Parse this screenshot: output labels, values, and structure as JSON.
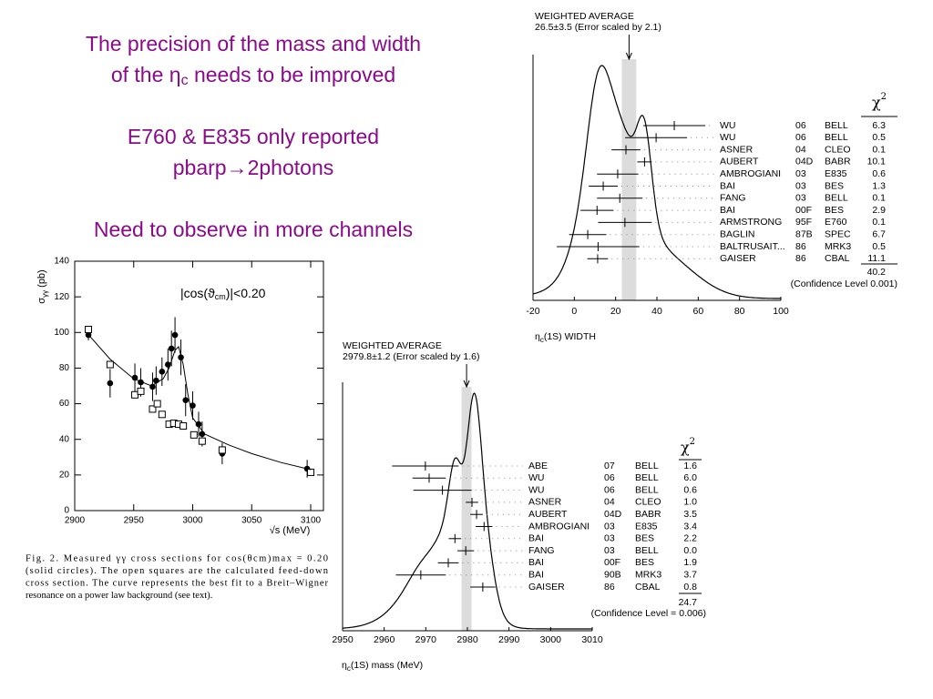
{
  "slide": {
    "line1": "The precision of the mass and width",
    "line2": [
      "of the η",
      "c",
      " needs to be improved"
    ],
    "line3": "E760 & E835 only reported",
    "line4": "pbarp→2photons",
    "line5": "Need to observe in more channels"
  },
  "chart_data": [
    {
      "type": "ideogram",
      "title": "WEIGHTED AVERAGE",
      "average_label": "26.5±3.5 (Error scaled by 2.1)",
      "average": 26.5,
      "average_error": 3.5,
      "xlabel": [
        "η",
        "c",
        "(1S) WIDTH"
      ],
      "chi2_header": [
        "χ",
        "2"
      ],
      "chi2_total": "40.2",
      "confidence": "(Confidence Level  0.001)",
      "xlim": [
        -20,
        100
      ],
      "xticks": [
        -20,
        0,
        20,
        40,
        60,
        80,
        100
      ],
      "color": "#000000",
      "band_color": "#dcdcdc",
      "rows": [
        {
          "name": "WU",
          "year": "06",
          "collab": "BELL",
          "chi2": "6.3",
          "value": 48.4,
          "error": 15
        },
        {
          "name": "WU",
          "year": "06",
          "collab": "BELL",
          "chi2": "0.5",
          "value": 39.6,
          "error": 15
        },
        {
          "name": "ASNER",
          "year": "04",
          "collab": "CLEO",
          "chi2": "0.1",
          "value": 25,
          "error": 7
        },
        {
          "name": "AUBERT",
          "year": "04D",
          "collab": "BABR",
          "chi2": "10.1",
          "value": 34,
          "error": 3.5
        },
        {
          "name": "AMBROGIANI",
          "year": "03",
          "collab": "E835",
          "chi2": "0.6",
          "value": 21,
          "error": 10
        },
        {
          "name": "BAI",
          "year": "03",
          "collab": "BES",
          "chi2": "1.3",
          "value": 14,
          "error": 7
        },
        {
          "name": "FANG",
          "year": "03",
          "collab": "BELL",
          "chi2": "0.1",
          "value": 22,
          "error": 11
        },
        {
          "name": "BAI",
          "year": "00F",
          "collab": "BES",
          "chi2": "2.9",
          "value": 11,
          "error": 8
        },
        {
          "name": "ARMSTRONG",
          "year": "95F",
          "collab": "E760",
          "chi2": "0.1",
          "value": 24.5,
          "error": 13
        },
        {
          "name": "BAGLIN",
          "year": "87B",
          "collab": "SPEC",
          "chi2": "6.7",
          "value": 6.5,
          "error": 9
        },
        {
          "name": "BALTRUSAIT...",
          "year": "86",
          "collab": "MRK3",
          "chi2": "0.5",
          "value": 11.5,
          "error": 20
        },
        {
          "name": "GAISER",
          "year": "86",
          "collab": "CBAL",
          "chi2": "11.1",
          "value": 11.3,
          "error": 5
        }
      ]
    },
    {
      "type": "ideogram",
      "title": "WEIGHTED AVERAGE",
      "average_label": "2979.8±1.2 (Error scaled by 1.6)",
      "average": 2979.8,
      "average_error": 1.2,
      "xlabel": [
        "η",
        "c",
        "(1S) mass (MeV)"
      ],
      "chi2_header": [
        "χ",
        "2"
      ],
      "chi2_total": "24.7",
      "confidence": "(Confidence Level = 0.006)",
      "xlim": [
        2950,
        3010
      ],
      "xticks": [
        2950,
        2960,
        2970,
        2980,
        2990,
        3000,
        3010
      ],
      "color": "#000000",
      "band_color": "#dcdcdc",
      "rows": [
        {
          "name": "ABE",
          "year": "07",
          "collab": "BELL",
          "chi2": "1.6",
          "value": 2969.9,
          "error": 8
        },
        {
          "name": "WU",
          "year": "06",
          "collab": "BELL",
          "chi2": "6.0",
          "value": 2970.8,
          "error": 4
        },
        {
          "name": "WU",
          "year": "06",
          "collab": "BELL",
          "chi2": "0.6",
          "value": 2974,
          "error": 7
        },
        {
          "name": "ASNER",
          "year": "04",
          "collab": "CLEO",
          "chi2": "1.0",
          "value": 2981.1,
          "error": 1.5
        },
        {
          "name": "AUBERT",
          "year": "04D",
          "collab": "BABR",
          "chi2": "3.5",
          "value": 2982.2,
          "error": 1.5
        },
        {
          "name": "AMBROGIANI",
          "year": "03",
          "collab": "E835",
          "chi2": "3.4",
          "value": 2984,
          "error": 2
        },
        {
          "name": "BAI",
          "year": "03",
          "collab": "BES",
          "chi2": "2.2",
          "value": 2977,
          "error": 1.5
        },
        {
          "name": "FANG",
          "year": "03",
          "collab": "BELL",
          "chi2": "0.0",
          "value": 2979.6,
          "error": 2
        },
        {
          "name": "BAI",
          "year": "00F",
          "collab": "BES",
          "chi2": "1.9",
          "value": 2975.4,
          "error": 2.5
        },
        {
          "name": "BAI",
          "year": "90B",
          "collab": "MRK3",
          "chi2": "3.7",
          "value": 2968.8,
          "error": 6
        },
        {
          "name": "GAISER",
          "year": "86",
          "collab": "CBAL",
          "chi2": "0.8",
          "value": 2983.7,
          "error": 3
        }
      ]
    },
    {
      "type": "scatter",
      "ylabel": [
        "σ",
        "γγ",
        " (pb)"
      ],
      "xlabel": "√s  (MeV)",
      "annotation": [
        "|cos(ϑ",
        "cm",
        ")|<0.20"
      ],
      "xlim": [
        2900,
        3100
      ],
      "xticks": [
        2900,
        2950,
        3000,
        3050,
        3100
      ],
      "ylim": [
        0,
        140
      ],
      "yticks": [
        0,
        20,
        40,
        60,
        80,
        100,
        120,
        140
      ],
      "series": [
        {
          "marker": "circle",
          "color": "#000000",
          "x": [
            2911.6,
            2930,
            2951,
            2956,
            2966,
            2969,
            2974,
            2979,
            2982,
            2985,
            2990,
            2994,
            3000,
            3005,
            3008,
            3025,
            3097
          ],
          "values": [
            98.6,
            71.5,
            74.6,
            72,
            69.5,
            73,
            78,
            82,
            91,
            98.6,
            86,
            62,
            59,
            48.5,
            43,
            32,
            23.5
          ],
          "errors": [
            3,
            8,
            8,
            8,
            8,
            8,
            8,
            9,
            10,
            10,
            10,
            9,
            8,
            7,
            7,
            6,
            5
          ]
        },
        {
          "marker": "square",
          "color": "#000000",
          "x": [
            2911.6,
            2930,
            2951,
            2956,
            2966,
            2970,
            2974,
            2980,
            2984,
            2988,
            2992,
            3001,
            3008,
            3025,
            3100
          ],
          "values": [
            101.7,
            82,
            65,
            67,
            57,
            60,
            54,
            48.5,
            49,
            48.5,
            47.5,
            42.5,
            39,
            34,
            21.5
          ]
        },
        {
          "marker": "line",
          "color": "#000000",
          "x": [
            2910,
            2930,
            2950,
            2965,
            2975,
            2980,
            2985,
            2988,
            2992,
            2996,
            3000,
            3010,
            3030,
            3050,
            3075,
            3100
          ],
          "values": [
            100,
            85,
            74,
            70,
            74,
            80,
            90,
            92,
            82,
            65,
            52,
            43,
            37,
            32,
            27,
            23
          ]
        }
      ],
      "caption": [
        "Fig. 2. Measured γγ cross sections for cos(θcm)max = 0.20",
        "(solid circles). The open squares are the calculated feed-down",
        "cross section. The curve represents the best fit to a Breit–Wigner",
        "resonance on a power law background (see text)."
      ]
    }
  ]
}
